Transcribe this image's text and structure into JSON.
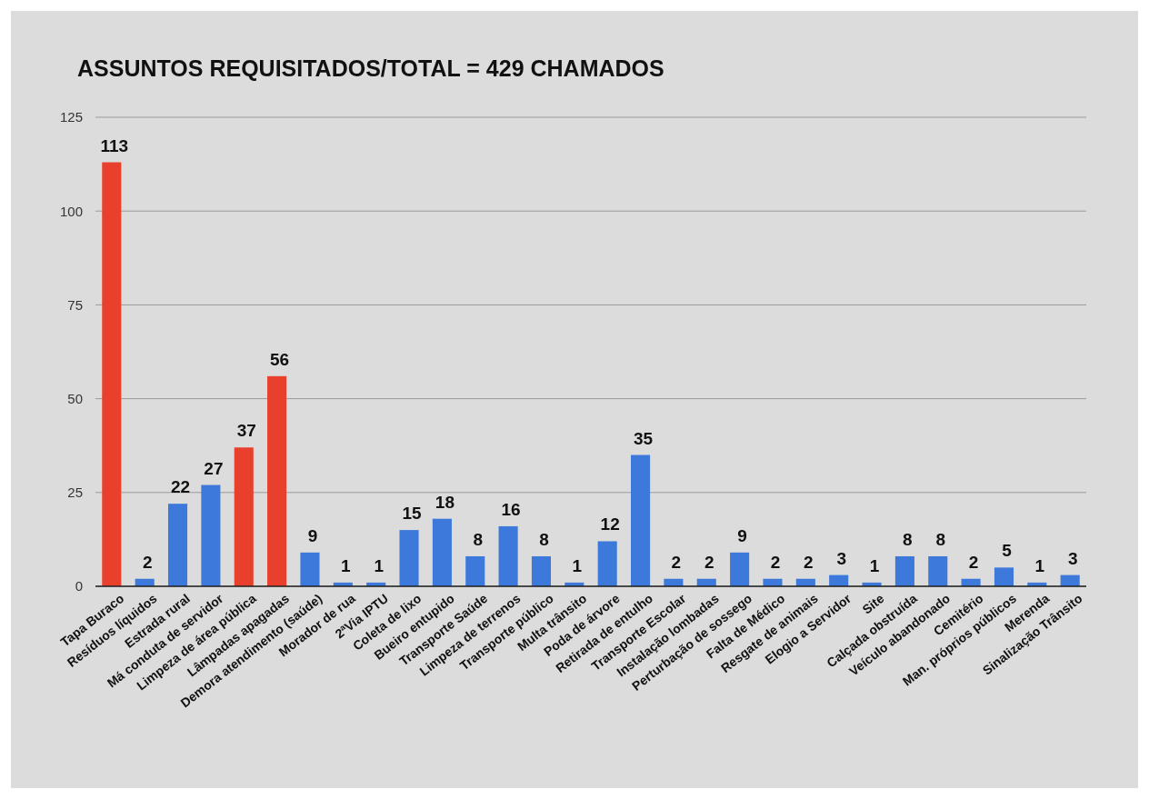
{
  "chart_data": {
    "type": "bar",
    "title": "ASSUNTOS REQUISITADOS/TOTAL = 429 CHAMADOS",
    "categories": [
      "Tapa Buraco",
      "Resíduos líquidos",
      "Estrada rural",
      "Má conduta de servidor",
      "Limpeza de área pública",
      "Lâmpadas apagadas",
      "Demora atendimento (saúde)",
      "Morador de rua",
      "2ªVia IPTU",
      "Coleta de lixo",
      "Bueiro entupido",
      "Transporte Saúde",
      "Limpeza de terrenos",
      "Transporte público",
      "Multa trânsito",
      "Poda de árvore",
      "Retirada de entulho",
      "Transporte Escolar",
      "Instalação lombadas",
      "Perturbação de sossego",
      "Falta de Médico",
      "Resgate de animais",
      "Elogio a Servidor",
      "Site",
      "Calçada obstruída",
      "Veículo abandonado",
      "Cemitério",
      "Man. próprios públicos",
      "Merenda",
      "Sinalização Trânsito"
    ],
    "values": [
      113,
      2,
      22,
      27,
      37,
      56,
      9,
      1,
      1,
      15,
      18,
      8,
      16,
      8,
      1,
      12,
      35,
      2,
      2,
      9,
      2,
      2,
      3,
      1,
      8,
      8,
      2,
      5,
      1,
      3
    ],
    "colors": [
      "#e8402c",
      "#3d79db",
      "#3d79db",
      "#3d79db",
      "#e8402c",
      "#e8402c",
      "#3d79db",
      "#3d79db",
      "#3d79db",
      "#3d79db",
      "#3d79db",
      "#3d79db",
      "#3d79db",
      "#3d79db",
      "#3d79db",
      "#3d79db",
      "#3d79db",
      "#3d79db",
      "#3d79db",
      "#3d79db",
      "#3d79db",
      "#3d79db",
      "#3d79db",
      "#3d79db",
      "#3d79db",
      "#3d79db",
      "#3d79db",
      "#3d79db",
      "#3d79db",
      "#3d79db"
    ],
    "ylim": [
      0,
      125
    ],
    "yticks": [
      0,
      25,
      50,
      75,
      100,
      125
    ],
    "grid": "y",
    "data_labels": true
  }
}
